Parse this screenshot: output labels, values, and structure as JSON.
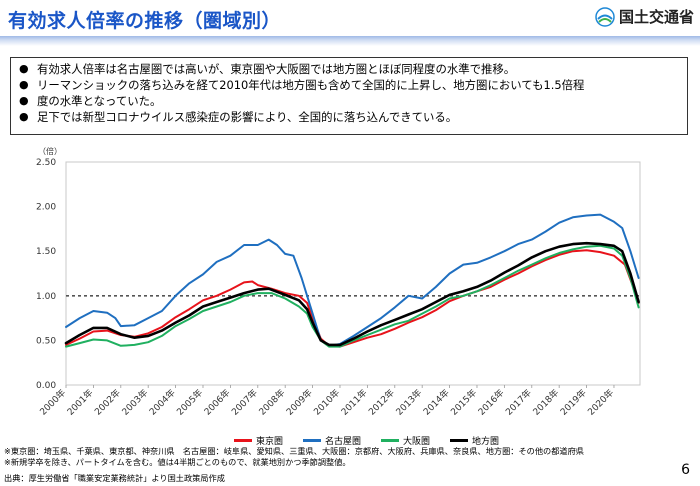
{
  "header": {
    "title": "有効求人倍率の推移（圏域別）",
    "logo_text": "国土交通省"
  },
  "bullets": [
    "有効求人倍率は名古屋圏では高いが、東京圏や大阪圏では地方圏とほぼ同程度の水準で推移。",
    "リーマンショックの落ち込みを経て2010年代は地方圏も含めて全国的に上昇し、地方圏においても1.5倍程",
    "度の水準となっていた。",
    "足下では新型コロナウイルス感染症の影響により、全国的に落ち込んできている。"
  ],
  "chart_data": {
    "type": "line",
    "ylabel": "（倍）",
    "ylim": [
      0,
      2.5
    ],
    "yticks": [
      "0.00",
      "0.50",
      "1.00",
      "1.50",
      "2.00",
      "2.50"
    ],
    "reference_line": 1.0,
    "x_ticks": [
      "2000年",
      "2001年",
      "2002年",
      "2003年",
      "2004年",
      "2005年",
      "2006年",
      "2007年",
      "2008年",
      "2009年",
      "2010年",
      "2011年",
      "2012年",
      "2013年",
      "2014年",
      "2015年",
      "2016年",
      "2017年",
      "2018年",
      "2019年",
      "2020年"
    ],
    "x_start": 2000.0,
    "x_end": 2020.95,
    "series": [
      {
        "name": "東京圏",
        "color": "#e8131b",
        "points": [
          [
            2000.0,
            0.45
          ],
          [
            2000.5,
            0.52
          ],
          [
            2001.0,
            0.6
          ],
          [
            2001.5,
            0.61
          ],
          [
            2002.0,
            0.56
          ],
          [
            2002.5,
            0.54
          ],
          [
            2003.0,
            0.58
          ],
          [
            2003.5,
            0.65
          ],
          [
            2004.0,
            0.76
          ],
          [
            2004.5,
            0.85
          ],
          [
            2005.0,
            0.95
          ],
          [
            2005.5,
            1.0
          ],
          [
            2006.0,
            1.07
          ],
          [
            2006.5,
            1.15
          ],
          [
            2006.8,
            1.16
          ],
          [
            2007.0,
            1.12
          ],
          [
            2007.5,
            1.08
          ],
          [
            2008.0,
            1.03
          ],
          [
            2008.5,
            1.0
          ],
          [
            2008.8,
            0.92
          ],
          [
            2009.0,
            0.75
          ],
          [
            2009.3,
            0.52
          ],
          [
            2009.6,
            0.44
          ],
          [
            2010.0,
            0.43
          ],
          [
            2010.5,
            0.48
          ],
          [
            2011.0,
            0.53
          ],
          [
            2011.5,
            0.57
          ],
          [
            2012.0,
            0.63
          ],
          [
            2012.5,
            0.7
          ],
          [
            2013.0,
            0.76
          ],
          [
            2013.5,
            0.84
          ],
          [
            2014.0,
            0.94
          ],
          [
            2014.5,
            1.0
          ],
          [
            2015.0,
            1.05
          ],
          [
            2015.5,
            1.1
          ],
          [
            2016.0,
            1.18
          ],
          [
            2016.5,
            1.25
          ],
          [
            2017.0,
            1.33
          ],
          [
            2017.5,
            1.4
          ],
          [
            2018.0,
            1.46
          ],
          [
            2018.5,
            1.5
          ],
          [
            2019.0,
            1.51
          ],
          [
            2019.5,
            1.49
          ],
          [
            2020.0,
            1.45
          ],
          [
            2020.4,
            1.35
          ],
          [
            2020.7,
            1.1
          ],
          [
            2020.9,
            0.92
          ]
        ]
      },
      {
        "name": "名古屋圏",
        "color": "#1f6fc0",
        "points": [
          [
            2000.0,
            0.65
          ],
          [
            2000.5,
            0.75
          ],
          [
            2001.0,
            0.83
          ],
          [
            2001.5,
            0.81
          ],
          [
            2001.8,
            0.75
          ],
          [
            2002.0,
            0.66
          ],
          [
            2002.5,
            0.67
          ],
          [
            2003.0,
            0.75
          ],
          [
            2003.5,
            0.83
          ],
          [
            2004.0,
            1.0
          ],
          [
            2004.5,
            1.14
          ],
          [
            2005.0,
            1.24
          ],
          [
            2005.5,
            1.38
          ],
          [
            2006.0,
            1.45
          ],
          [
            2006.5,
            1.57
          ],
          [
            2007.0,
            1.57
          ],
          [
            2007.4,
            1.63
          ],
          [
            2007.7,
            1.57
          ],
          [
            2008.0,
            1.47
          ],
          [
            2008.3,
            1.45
          ],
          [
            2008.6,
            1.2
          ],
          [
            2009.0,
            0.8
          ],
          [
            2009.3,
            0.5
          ],
          [
            2009.6,
            0.44
          ],
          [
            2010.0,
            0.46
          ],
          [
            2010.5,
            0.55
          ],
          [
            2011.0,
            0.65
          ],
          [
            2011.5,
            0.75
          ],
          [
            2012.0,
            0.87
          ],
          [
            2012.5,
            1.0
          ],
          [
            2013.0,
            0.97
          ],
          [
            2013.5,
            1.1
          ],
          [
            2014.0,
            1.25
          ],
          [
            2014.5,
            1.35
          ],
          [
            2015.0,
            1.37
          ],
          [
            2015.5,
            1.43
          ],
          [
            2016.0,
            1.5
          ],
          [
            2016.5,
            1.58
          ],
          [
            2017.0,
            1.63
          ],
          [
            2017.5,
            1.72
          ],
          [
            2018.0,
            1.82
          ],
          [
            2018.5,
            1.88
          ],
          [
            2019.0,
            1.9
          ],
          [
            2019.5,
            1.91
          ],
          [
            2020.0,
            1.83
          ],
          [
            2020.3,
            1.76
          ],
          [
            2020.6,
            1.5
          ],
          [
            2020.9,
            1.2
          ]
        ]
      },
      {
        "name": "大阪圏",
        "color": "#20b060",
        "points": [
          [
            2000.0,
            0.43
          ],
          [
            2000.5,
            0.47
          ],
          [
            2001.0,
            0.51
          ],
          [
            2001.5,
            0.5
          ],
          [
            2002.0,
            0.44
          ],
          [
            2002.5,
            0.45
          ],
          [
            2003.0,
            0.48
          ],
          [
            2003.5,
            0.55
          ],
          [
            2004.0,
            0.66
          ],
          [
            2004.5,
            0.74
          ],
          [
            2005.0,
            0.83
          ],
          [
            2005.5,
            0.88
          ],
          [
            2006.0,
            0.93
          ],
          [
            2006.5,
            1.0
          ],
          [
            2007.0,
            1.03
          ],
          [
            2007.5,
            1.03
          ],
          [
            2008.0,
            0.97
          ],
          [
            2008.5,
            0.88
          ],
          [
            2008.8,
            0.8
          ],
          [
            2009.0,
            0.65
          ],
          [
            2009.3,
            0.5
          ],
          [
            2009.6,
            0.43
          ],
          [
            2010.0,
            0.43
          ],
          [
            2010.5,
            0.5
          ],
          [
            2011.0,
            0.56
          ],
          [
            2011.5,
            0.62
          ],
          [
            2012.0,
            0.68
          ],
          [
            2012.5,
            0.72
          ],
          [
            2013.0,
            0.8
          ],
          [
            2013.5,
            0.88
          ],
          [
            2014.0,
            0.97
          ],
          [
            2014.5,
            1.0
          ],
          [
            2015.0,
            1.05
          ],
          [
            2015.5,
            1.12
          ],
          [
            2016.0,
            1.2
          ],
          [
            2016.5,
            1.28
          ],
          [
            2017.0,
            1.35
          ],
          [
            2017.5,
            1.42
          ],
          [
            2018.0,
            1.48
          ],
          [
            2018.5,
            1.52
          ],
          [
            2019.0,
            1.55
          ],
          [
            2019.5,
            1.56
          ],
          [
            2020.0,
            1.53
          ],
          [
            2020.3,
            1.45
          ],
          [
            2020.6,
            1.2
          ],
          [
            2020.9,
            0.87
          ]
        ]
      },
      {
        "name": "地方圏",
        "color": "#000000",
        "points": [
          [
            2000.0,
            0.47
          ],
          [
            2000.5,
            0.56
          ],
          [
            2001.0,
            0.64
          ],
          [
            2001.5,
            0.64
          ],
          [
            2002.0,
            0.57
          ],
          [
            2002.5,
            0.53
          ],
          [
            2003.0,
            0.55
          ],
          [
            2003.5,
            0.61
          ],
          [
            2004.0,
            0.7
          ],
          [
            2004.5,
            0.78
          ],
          [
            2005.0,
            0.88
          ],
          [
            2005.5,
            0.93
          ],
          [
            2006.0,
            0.98
          ],
          [
            2006.5,
            1.03
          ],
          [
            2007.0,
            1.07
          ],
          [
            2007.4,
            1.08
          ],
          [
            2008.0,
            1.01
          ],
          [
            2008.5,
            0.95
          ],
          [
            2008.8,
            0.85
          ],
          [
            2009.0,
            0.7
          ],
          [
            2009.3,
            0.5
          ],
          [
            2009.6,
            0.45
          ],
          [
            2010.0,
            0.45
          ],
          [
            2010.5,
            0.52
          ],
          [
            2011.0,
            0.6
          ],
          [
            2011.5,
            0.67
          ],
          [
            2012.0,
            0.73
          ],
          [
            2012.5,
            0.79
          ],
          [
            2013.0,
            0.85
          ],
          [
            2013.5,
            0.93
          ],
          [
            2014.0,
            1.01
          ],
          [
            2014.5,
            1.05
          ],
          [
            2015.0,
            1.1
          ],
          [
            2015.5,
            1.17
          ],
          [
            2016.0,
            1.26
          ],
          [
            2016.5,
            1.34
          ],
          [
            2017.0,
            1.43
          ],
          [
            2017.5,
            1.5
          ],
          [
            2018.0,
            1.55
          ],
          [
            2018.5,
            1.58
          ],
          [
            2019.0,
            1.59
          ],
          [
            2019.5,
            1.58
          ],
          [
            2020.0,
            1.56
          ],
          [
            2020.3,
            1.5
          ],
          [
            2020.6,
            1.25
          ],
          [
            2020.9,
            0.93
          ]
        ]
      }
    ]
  },
  "notes": [
    "※東京圏：埼玉県、千葉県、東京都、神奈川県　名古屋圏：岐阜県、愛知県、三重県、大阪圏：京都府、大阪府、兵庫県、奈良県、地方圏：その他の都道府県",
    "※新規学卒を除き、パートタイムを含む。値は4半期ごとのもので、就業地別かつ季節調整値。"
  ],
  "source": "出典：厚生労働省「職業安定業務統計」より国土政策局作成",
  "page_number": "6"
}
